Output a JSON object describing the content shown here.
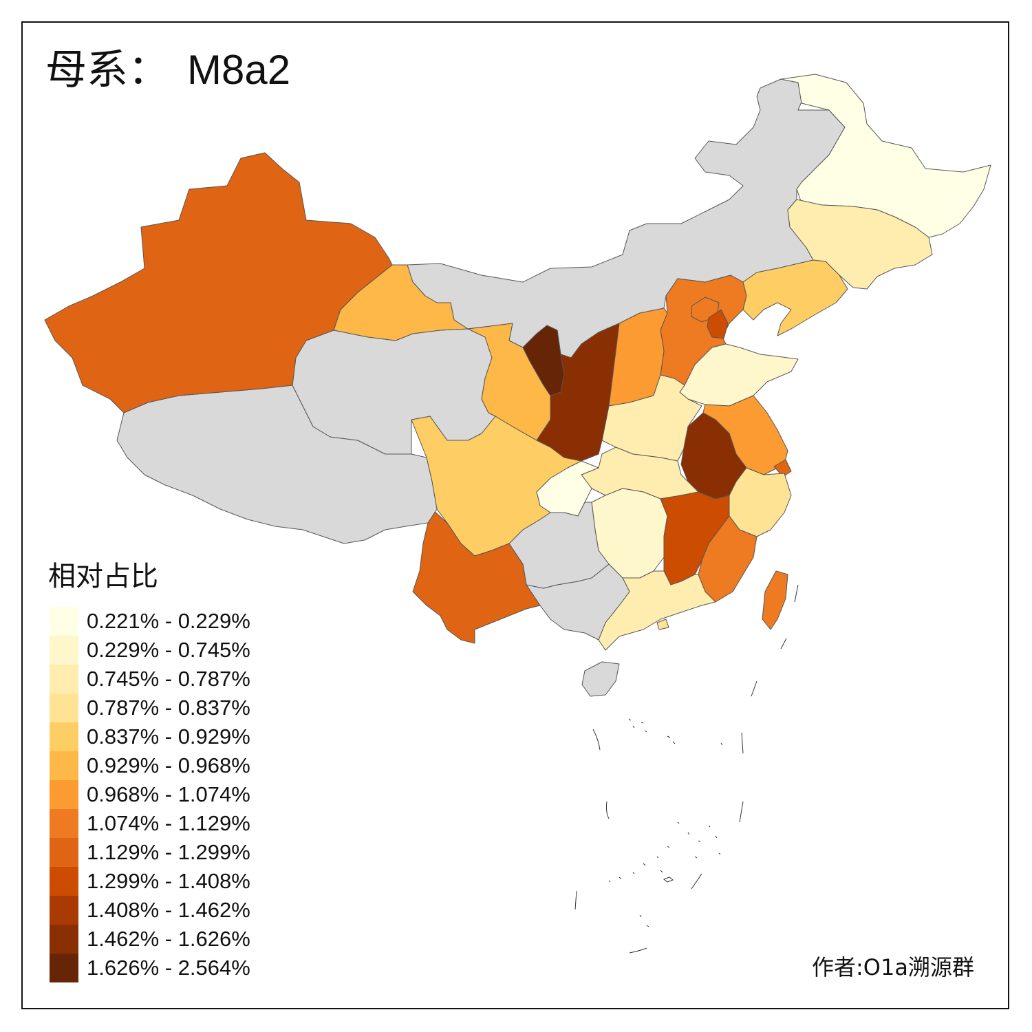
{
  "title": {
    "label": "母系：",
    "haplogroup": "M8a2"
  },
  "legend": {
    "title": "相对占比",
    "classes": [
      {
        "label": "0.221% - 0.229%",
        "color": "#FFFFE5"
      },
      {
        "label": "0.229% - 0.745%",
        "color": "#FFF7CC"
      },
      {
        "label": "0.745% - 0.787%",
        "color": "#FFEDAF"
      },
      {
        "label": "0.787% - 0.837%",
        "color": "#FEE395"
      },
      {
        "label": "0.837% - 0.929%",
        "color": "#FECE65"
      },
      {
        "label": "0.929% - 0.968%",
        "color": "#FDB848"
      },
      {
        "label": "0.968% - 1.074%",
        "color": "#FC9B31"
      },
      {
        "label": "1.074% - 1.129%",
        "color": "#EE7A22"
      },
      {
        "label": "1.129% - 1.299%",
        "color": "#DF6413"
      },
      {
        "label": "1.299% - 1.408%",
        "color": "#CC4C02"
      },
      {
        "label": "1.408% - 1.462%",
        "color": "#A93A04"
      },
      {
        "label": "1.462% - 1.626%",
        "color": "#8A2F04"
      },
      {
        "label": "1.626% - 2.564%",
        "color": "#662506"
      }
    ]
  },
  "no_data_color": "#D9D9D9",
  "provinces": {
    "heilongjiang": 0,
    "jilin": 2,
    "liaoning": 4,
    "inner_mongolia": -1,
    "beijing": 7,
    "tianjin": 9,
    "hebei": 7,
    "shanxi": 6,
    "shandong": 1,
    "jiangsu": 6,
    "shanghai": 8,
    "zhejiang": 3,
    "anhui": 11,
    "henan": 2,
    "hubei": 2,
    "hunan": 1,
    "jiangxi": 9,
    "fujian": 7,
    "guangdong": 2,
    "guangxi": -1,
    "hainan": -1,
    "chongqing": 0,
    "sichuan": 4,
    "guizhou": -1,
    "yunnan": 8,
    "tibet": -1,
    "shaanxi": 11,
    "gansu": 5,
    "ningxia": 12,
    "qinghai": -1,
    "xinjiang": 8,
    "taiwan": 7,
    "hongkong": 3
  },
  "credit": "作者:O1a溯源群"
}
